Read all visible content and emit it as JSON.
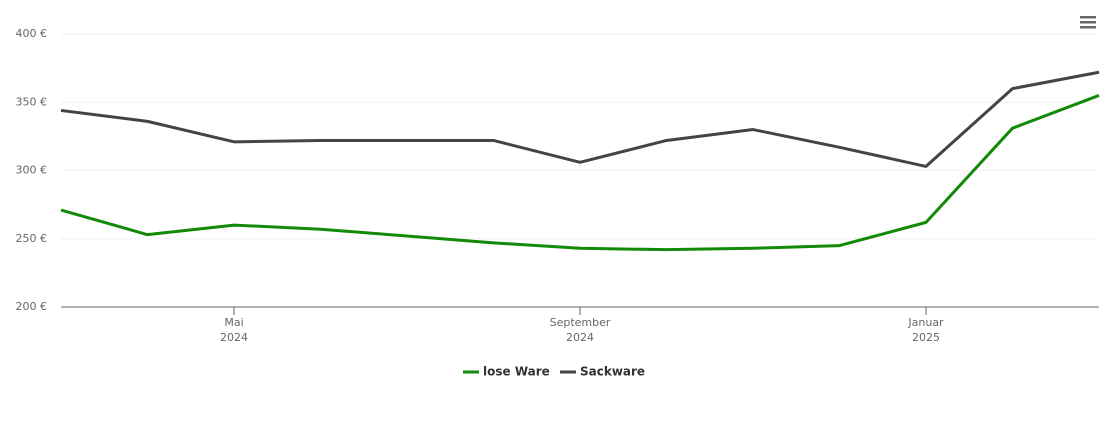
{
  "chart_data": {
    "type": "line",
    "x": [
      "2024-03",
      "2024-04",
      "2024-05",
      "2024-06",
      "2024-07",
      "2024-08",
      "2024-09",
      "2024-10",
      "2024-11",
      "2024-12",
      "2025-01",
      "2025-02",
      "2025-03"
    ],
    "series": [
      {
        "name": "lose Ware",
        "color": "#138a07",
        "values": [
          271,
          253,
          260,
          257,
          252,
          247,
          243,
          242,
          243,
          245,
          262,
          331,
          355
        ]
      },
      {
        "name": "Sackware",
        "color": "#434348",
        "values": [
          344,
          336,
          321,
          322,
          322,
          322,
          306,
          322,
          330,
          317,
          303,
          360,
          372
        ]
      }
    ],
    "xlim": [
      "2024-03",
      "2025-03"
    ],
    "xticks": [
      {
        "value": "2024-05",
        "label": [
          "Mai",
          "2024"
        ]
      },
      {
        "value": "2024-09",
        "label": [
          "September",
          "2024"
        ]
      },
      {
        "value": "2025-01",
        "label": [
          "Januar",
          "2025"
        ]
      }
    ],
    "ylim": [
      200,
      400
    ],
    "yticks": [
      {
        "value": 200,
        "label": "200 €"
      },
      {
        "value": 250,
        "label": "250 €"
      },
      {
        "value": 300,
        "label": "300 €"
      },
      {
        "value": 350,
        "label": "350 €"
      },
      {
        "value": 400,
        "label": "400 €"
      }
    ],
    "grid": true,
    "legend": "bottom"
  }
}
